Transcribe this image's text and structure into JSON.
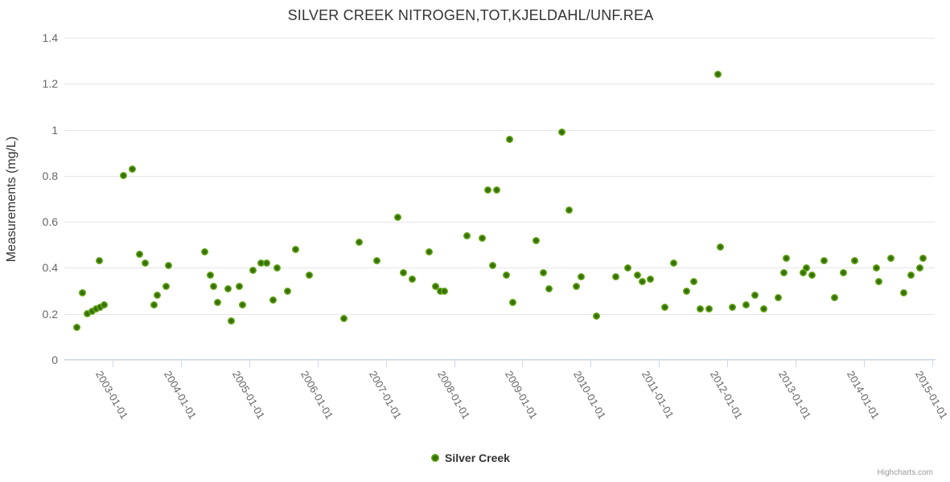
{
  "title": "SILVER CREEK NITROGEN,TOT,KJELDAHL/UNF.REA",
  "y_axis": {
    "title": "Measurements (mg/L)",
    "tick_labels": [
      "0",
      "0.2",
      "0.4",
      "0.6",
      "0.8",
      "1",
      "1.2",
      "1.4"
    ]
  },
  "x_axis": {
    "tick_labels": [
      "2003-01-01",
      "2004-01-01",
      "2005-01-01",
      "2006-01-01",
      "2007-01-01",
      "2008-01-01",
      "2009-01-01",
      "2010-01-01",
      "2011-01-01",
      "2012-01-01",
      "2013-01-01",
      "2014-01-01",
      "2015-01-01"
    ]
  },
  "legend": {
    "items": [
      {
        "label": "Silver Creek",
        "color": "#72b21c"
      }
    ]
  },
  "credits": "Highcharts.com",
  "colors": {
    "marker_outer": "#7cbe2b",
    "marker_core": "#356f04",
    "gridline": "#e6e6e6",
    "axis_line": "#ccd6eb",
    "title_text": "#333333",
    "axis_label_text": "#666666"
  },
  "chart_data": {
    "type": "scatter",
    "title": "SILVER CREEK NITROGEN,TOT,KJELDAHL/UNF.REA",
    "xlabel": "",
    "ylabel": "Measurements (mg/L)",
    "ylim": [
      0,
      1.4
    ],
    "yticks": [
      0,
      0.2,
      0.4,
      0.6,
      0.8,
      1.0,
      1.2,
      1.4
    ],
    "xticks": [
      "2003-01-01",
      "2004-01-01",
      "2005-01-01",
      "2006-01-01",
      "2007-01-01",
      "2008-01-01",
      "2009-01-01",
      "2010-01-01",
      "2011-01-01",
      "2012-01-01",
      "2013-01-01",
      "2014-01-01",
      "2015-01-01"
    ],
    "xlim_decimal_years": [
      2002.29,
      2015.04
    ],
    "grid": true,
    "legend_position": "bottom-center",
    "series": [
      {
        "name": "Silver Creek",
        "color": "#72b21c",
        "points": [
          [
            2002.47,
            0.14
          ],
          [
            2002.56,
            0.29
          ],
          [
            2002.63,
            0.2
          ],
          [
            2002.7,
            0.21
          ],
          [
            2002.76,
            0.22
          ],
          [
            2002.8,
            0.43
          ],
          [
            2002.82,
            0.23
          ],
          [
            2002.88,
            0.24
          ],
          [
            2003.16,
            0.8
          ],
          [
            2003.29,
            0.83
          ],
          [
            2003.39,
            0.46
          ],
          [
            2003.48,
            0.42
          ],
          [
            2003.61,
            0.24
          ],
          [
            2003.65,
            0.28
          ],
          [
            2003.78,
            0.32
          ],
          [
            2003.82,
            0.41
          ],
          [
            2004.35,
            0.47
          ],
          [
            2004.43,
            0.37
          ],
          [
            2004.48,
            0.32
          ],
          [
            2004.54,
            0.25
          ],
          [
            2004.69,
            0.31
          ],
          [
            2004.74,
            0.17
          ],
          [
            2004.86,
            0.32
          ],
          [
            2004.9,
            0.24
          ],
          [
            2005.05,
            0.39
          ],
          [
            2005.17,
            0.42
          ],
          [
            2005.25,
            0.42
          ],
          [
            2005.35,
            0.26
          ],
          [
            2005.41,
            0.4
          ],
          [
            2005.56,
            0.3
          ],
          [
            2005.68,
            0.48
          ],
          [
            2005.88,
            0.37
          ],
          [
            2006.39,
            0.18
          ],
          [
            2006.61,
            0.51
          ],
          [
            2006.87,
            0.43
          ],
          [
            2007.17,
            0.62
          ],
          [
            2007.26,
            0.38
          ],
          [
            2007.39,
            0.35
          ],
          [
            2007.64,
            0.47
          ],
          [
            2007.73,
            0.32
          ],
          [
            2007.8,
            0.3
          ],
          [
            2007.86,
            0.3
          ],
          [
            2008.19,
            0.54
          ],
          [
            2008.41,
            0.53
          ],
          [
            2008.49,
            0.74
          ],
          [
            2008.56,
            0.41
          ],
          [
            2008.63,
            0.74
          ],
          [
            2008.76,
            0.37
          ],
          [
            2008.81,
            0.96
          ],
          [
            2008.86,
            0.25
          ],
          [
            2009.2,
            0.52
          ],
          [
            2009.31,
            0.38
          ],
          [
            2009.39,
            0.31
          ],
          [
            2009.58,
            0.99
          ],
          [
            2009.69,
            0.65
          ],
          [
            2009.79,
            0.32
          ],
          [
            2009.86,
            0.36
          ],
          [
            2010.09,
            0.19
          ],
          [
            2010.37,
            0.36
          ],
          [
            2010.55,
            0.4
          ],
          [
            2010.68,
            0.37
          ],
          [
            2010.76,
            0.34
          ],
          [
            2010.87,
            0.35
          ],
          [
            2011.09,
            0.23
          ],
          [
            2011.21,
            0.42
          ],
          [
            2011.4,
            0.3
          ],
          [
            2011.51,
            0.34
          ],
          [
            2011.61,
            0.22
          ],
          [
            2011.73,
            0.22
          ],
          [
            2011.86,
            1.24
          ],
          [
            2011.9,
            0.49
          ],
          [
            2012.07,
            0.23
          ],
          [
            2012.28,
            0.24
          ],
          [
            2012.41,
            0.28
          ],
          [
            2012.54,
            0.22
          ],
          [
            2012.75,
            0.27
          ],
          [
            2012.83,
            0.38
          ],
          [
            2012.87,
            0.44
          ],
          [
            2013.11,
            0.38
          ],
          [
            2013.16,
            0.4
          ],
          [
            2013.24,
            0.37
          ],
          [
            2013.42,
            0.43
          ],
          [
            2013.57,
            0.27
          ],
          [
            2013.7,
            0.38
          ],
          [
            2013.87,
            0.43
          ],
          [
            2014.18,
            0.4
          ],
          [
            2014.22,
            0.34
          ],
          [
            2014.4,
            0.44
          ],
          [
            2014.58,
            0.29
          ],
          [
            2014.69,
            0.37
          ],
          [
            2014.82,
            0.4
          ],
          [
            2014.87,
            0.44
          ]
        ]
      }
    ]
  }
}
